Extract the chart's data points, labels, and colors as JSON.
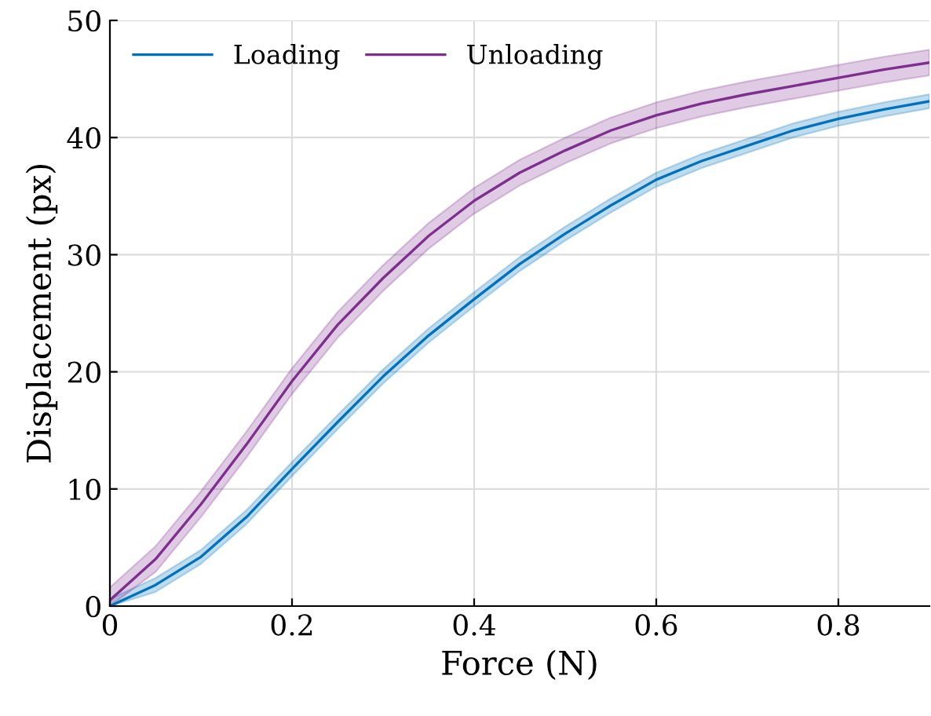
{
  "chart_data": {
    "type": "line",
    "xlabel": "Force (N)",
    "ylabel": "Displacement (px)",
    "x": [
      0,
      0.05,
      0.1,
      0.15,
      0.2,
      0.25,
      0.3,
      0.35,
      0.4,
      0.45,
      0.5,
      0.55,
      0.6,
      0.65,
      0.7,
      0.75,
      0.8,
      0.85,
      0.9
    ],
    "series": [
      {
        "name": "Loading",
        "color": "#0072bd",
        "values": [
          0,
          1.8,
          4.2,
          7.6,
          11.7,
          15.7,
          19.6,
          23.1,
          26.2,
          29.2,
          31.8,
          34.2,
          36.4,
          38,
          39.3,
          40.6,
          41.6,
          42.4,
          43.1
        ],
        "lower": [
          0,
          1.2,
          3.6,
          7.0,
          11.1,
          15.1,
          19.0,
          22.5,
          25.6,
          28.6,
          31.2,
          33.6,
          35.8,
          37.4,
          38.7,
          40.0,
          41.0,
          41.8,
          42.5
        ],
        "upper": [
          0.6,
          2.4,
          4.8,
          8.2,
          12.3,
          16.3,
          20.2,
          23.7,
          26.8,
          29.8,
          32.4,
          34.8,
          37.0,
          38.6,
          39.9,
          41.2,
          42.2,
          43.0,
          43.7
        ]
      },
      {
        "name": "Unloading",
        "color": "#7e2f8e",
        "values": [
          0.5,
          4,
          8.7,
          13.8,
          19.2,
          24,
          28,
          31.6,
          34.6,
          37,
          38.9,
          40.6,
          41.9,
          42.9,
          43.7,
          44.4,
          45.1,
          45.8,
          46.4
        ],
        "lower": [
          0,
          2.9,
          7.6,
          12.7,
          18.1,
          22.9,
          26.9,
          30.5,
          33.5,
          35.9,
          37.8,
          39.5,
          40.8,
          41.8,
          42.6,
          43.3,
          44.0,
          44.7,
          45.3
        ],
        "upper": [
          1.6,
          5.1,
          9.8,
          14.9,
          20.3,
          25.1,
          29.1,
          32.7,
          35.7,
          38.1,
          40.0,
          41.7,
          43.0,
          44.0,
          44.8,
          45.5,
          46.2,
          46.9,
          47.5
        ]
      }
    ],
    "xlim": [
      0,
      0.9
    ],
    "ylim": [
      0,
      50
    ],
    "xticks": [
      0,
      0.2,
      0.4,
      0.6,
      0.8
    ],
    "yticks": [
      0,
      10,
      20,
      30,
      40,
      50
    ],
    "grid": true,
    "legend": "top left",
    "marker": "none",
    "line_style": "solid"
  }
}
